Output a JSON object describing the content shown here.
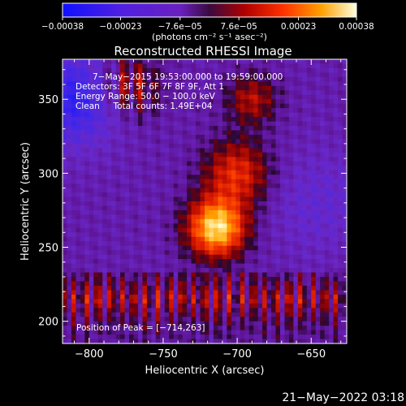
{
  "chart_data": {
    "type": "heatmap",
    "title": "Reconstructed RHESSI Image",
    "xlabel": "Heliocentric X (arcsec)",
    "ylabel": "Heliocentric Y (arcsec)",
    "xlim": [
      -818,
      -626
    ],
    "ylim": [
      185,
      377
    ],
    "x_ticks": [
      -800,
      -750,
      -700,
      -650
    ],
    "x_tick_labels": [
      "−800",
      "−750",
      "−700",
      "−650"
    ],
    "y_ticks": [
      200,
      250,
      300,
      350
    ],
    "y_tick_labels": [
      "200",
      "250",
      "300",
      "350"
    ],
    "colorbar": {
      "min": -0.00038,
      "max": 0.00038,
      "ticks": [
        -0.00038,
        -0.00023,
        -7.6e-05,
        7.6e-05,
        0.00023,
        0.00038
      ],
      "tick_labels": [
        "−0.00038",
        "−0.00023",
        "−7.6e−05",
        "7.6e−05",
        "0.00023",
        "0.00038"
      ],
      "units_label": "(photons cm⁻² s⁻¹ asec⁻²)"
    },
    "annotations": [
      "7−May−2015 19:53:00.000 to 19:59:00.000",
      "Detectors: 3F 5F 6F 7F 8F 9F, Att 1",
      "Energy Range: 50.0 − 100.0 keV",
      "Clean     Total counts: 1.49E+04"
    ],
    "peak_label": "Position of Peak = [−714,263]",
    "peak_position": [
      -714,
      263
    ],
    "colors": {
      "background": "#000000",
      "foreground": "#ffffff"
    }
  },
  "footer": {
    "timestamp": "21−May−2022 03:18"
  }
}
